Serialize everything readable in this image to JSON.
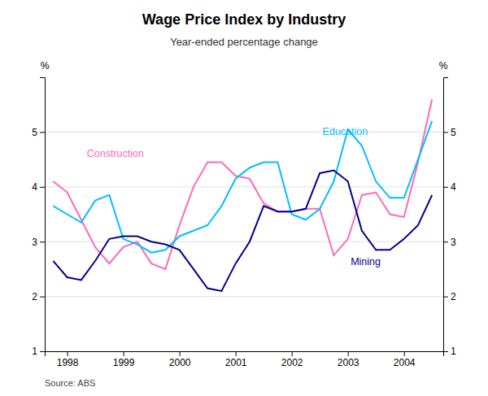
{
  "chart_data": {
    "type": "line",
    "title": "Wage Price Index by Industry",
    "subtitle": "Year-ended percentage change",
    "ylabel": "%",
    "y2label": "%",
    "source": "Source: ABS",
    "x": [
      1997.75,
      1998.0,
      1998.25,
      1998.5,
      1998.75,
      1999.0,
      1999.25,
      1999.5,
      1999.75,
      2000.0,
      2000.25,
      2000.5,
      2000.75,
      2001.0,
      2001.25,
      2001.5,
      2001.75,
      2002.0,
      2002.25,
      2002.5,
      2002.75,
      2003.0,
      2003.25,
      2003.5,
      2003.75,
      2004.0,
      2004.25,
      2004.5
    ],
    "series": [
      {
        "name": "Construction",
        "color": "#FF69B4",
        "values": [
          4.1,
          3.9,
          3.4,
          2.9,
          2.6,
          2.9,
          3.0,
          2.6,
          2.5,
          3.3,
          4.0,
          4.45,
          4.45,
          4.2,
          4.15,
          3.7,
          3.55,
          3.55,
          3.6,
          3.6,
          2.75,
          3.05,
          3.85,
          3.9,
          3.5,
          3.45,
          4.45,
          5.6
        ]
      },
      {
        "name": "Education",
        "color": "#00BFFF",
        "values": [
          3.65,
          3.5,
          3.35,
          3.75,
          3.85,
          3.05,
          2.95,
          2.8,
          2.85,
          3.1,
          3.2,
          3.3,
          3.65,
          4.15,
          4.35,
          4.45,
          4.45,
          3.5,
          3.4,
          3.6,
          4.1,
          5.05,
          4.75,
          4.1,
          3.8,
          3.8,
          4.5,
          5.2
        ]
      },
      {
        "name": "Mining",
        "color": "#00008B",
        "values": [
          2.65,
          2.35,
          2.3,
          2.65,
          3.05,
          3.1,
          3.1,
          3.0,
          2.95,
          2.85,
          2.5,
          2.15,
          2.1,
          2.6,
          3.0,
          3.65,
          3.55,
          3.55,
          3.6,
          4.25,
          4.3,
          4.1,
          3.2,
          2.85,
          2.85,
          3.05,
          3.3,
          3.85
        ]
      }
    ],
    "annotations": [
      {
        "text": "Construction",
        "x": 1998.35,
        "y": 4.55,
        "color": "#FF69B4"
      },
      {
        "text": "Education",
        "x": 2002.55,
        "y": 4.95,
        "color": "#00BFFF"
      },
      {
        "text": "Mining",
        "x": 2003.05,
        "y": 2.58,
        "color": "#00008B"
      }
    ],
    "xlim": [
      1997.6,
      2004.7
    ],
    "xticks": [
      1998,
      1999,
      2000,
      2001,
      2002,
      2003,
      2004
    ],
    "ylim": [
      1,
      6
    ],
    "yticks": [
      1,
      2,
      3,
      4,
      5
    ],
    "y2lim": [
      1,
      6
    ],
    "y2ticks": [
      1,
      2,
      3,
      4,
      5
    ],
    "grid": true
  }
}
